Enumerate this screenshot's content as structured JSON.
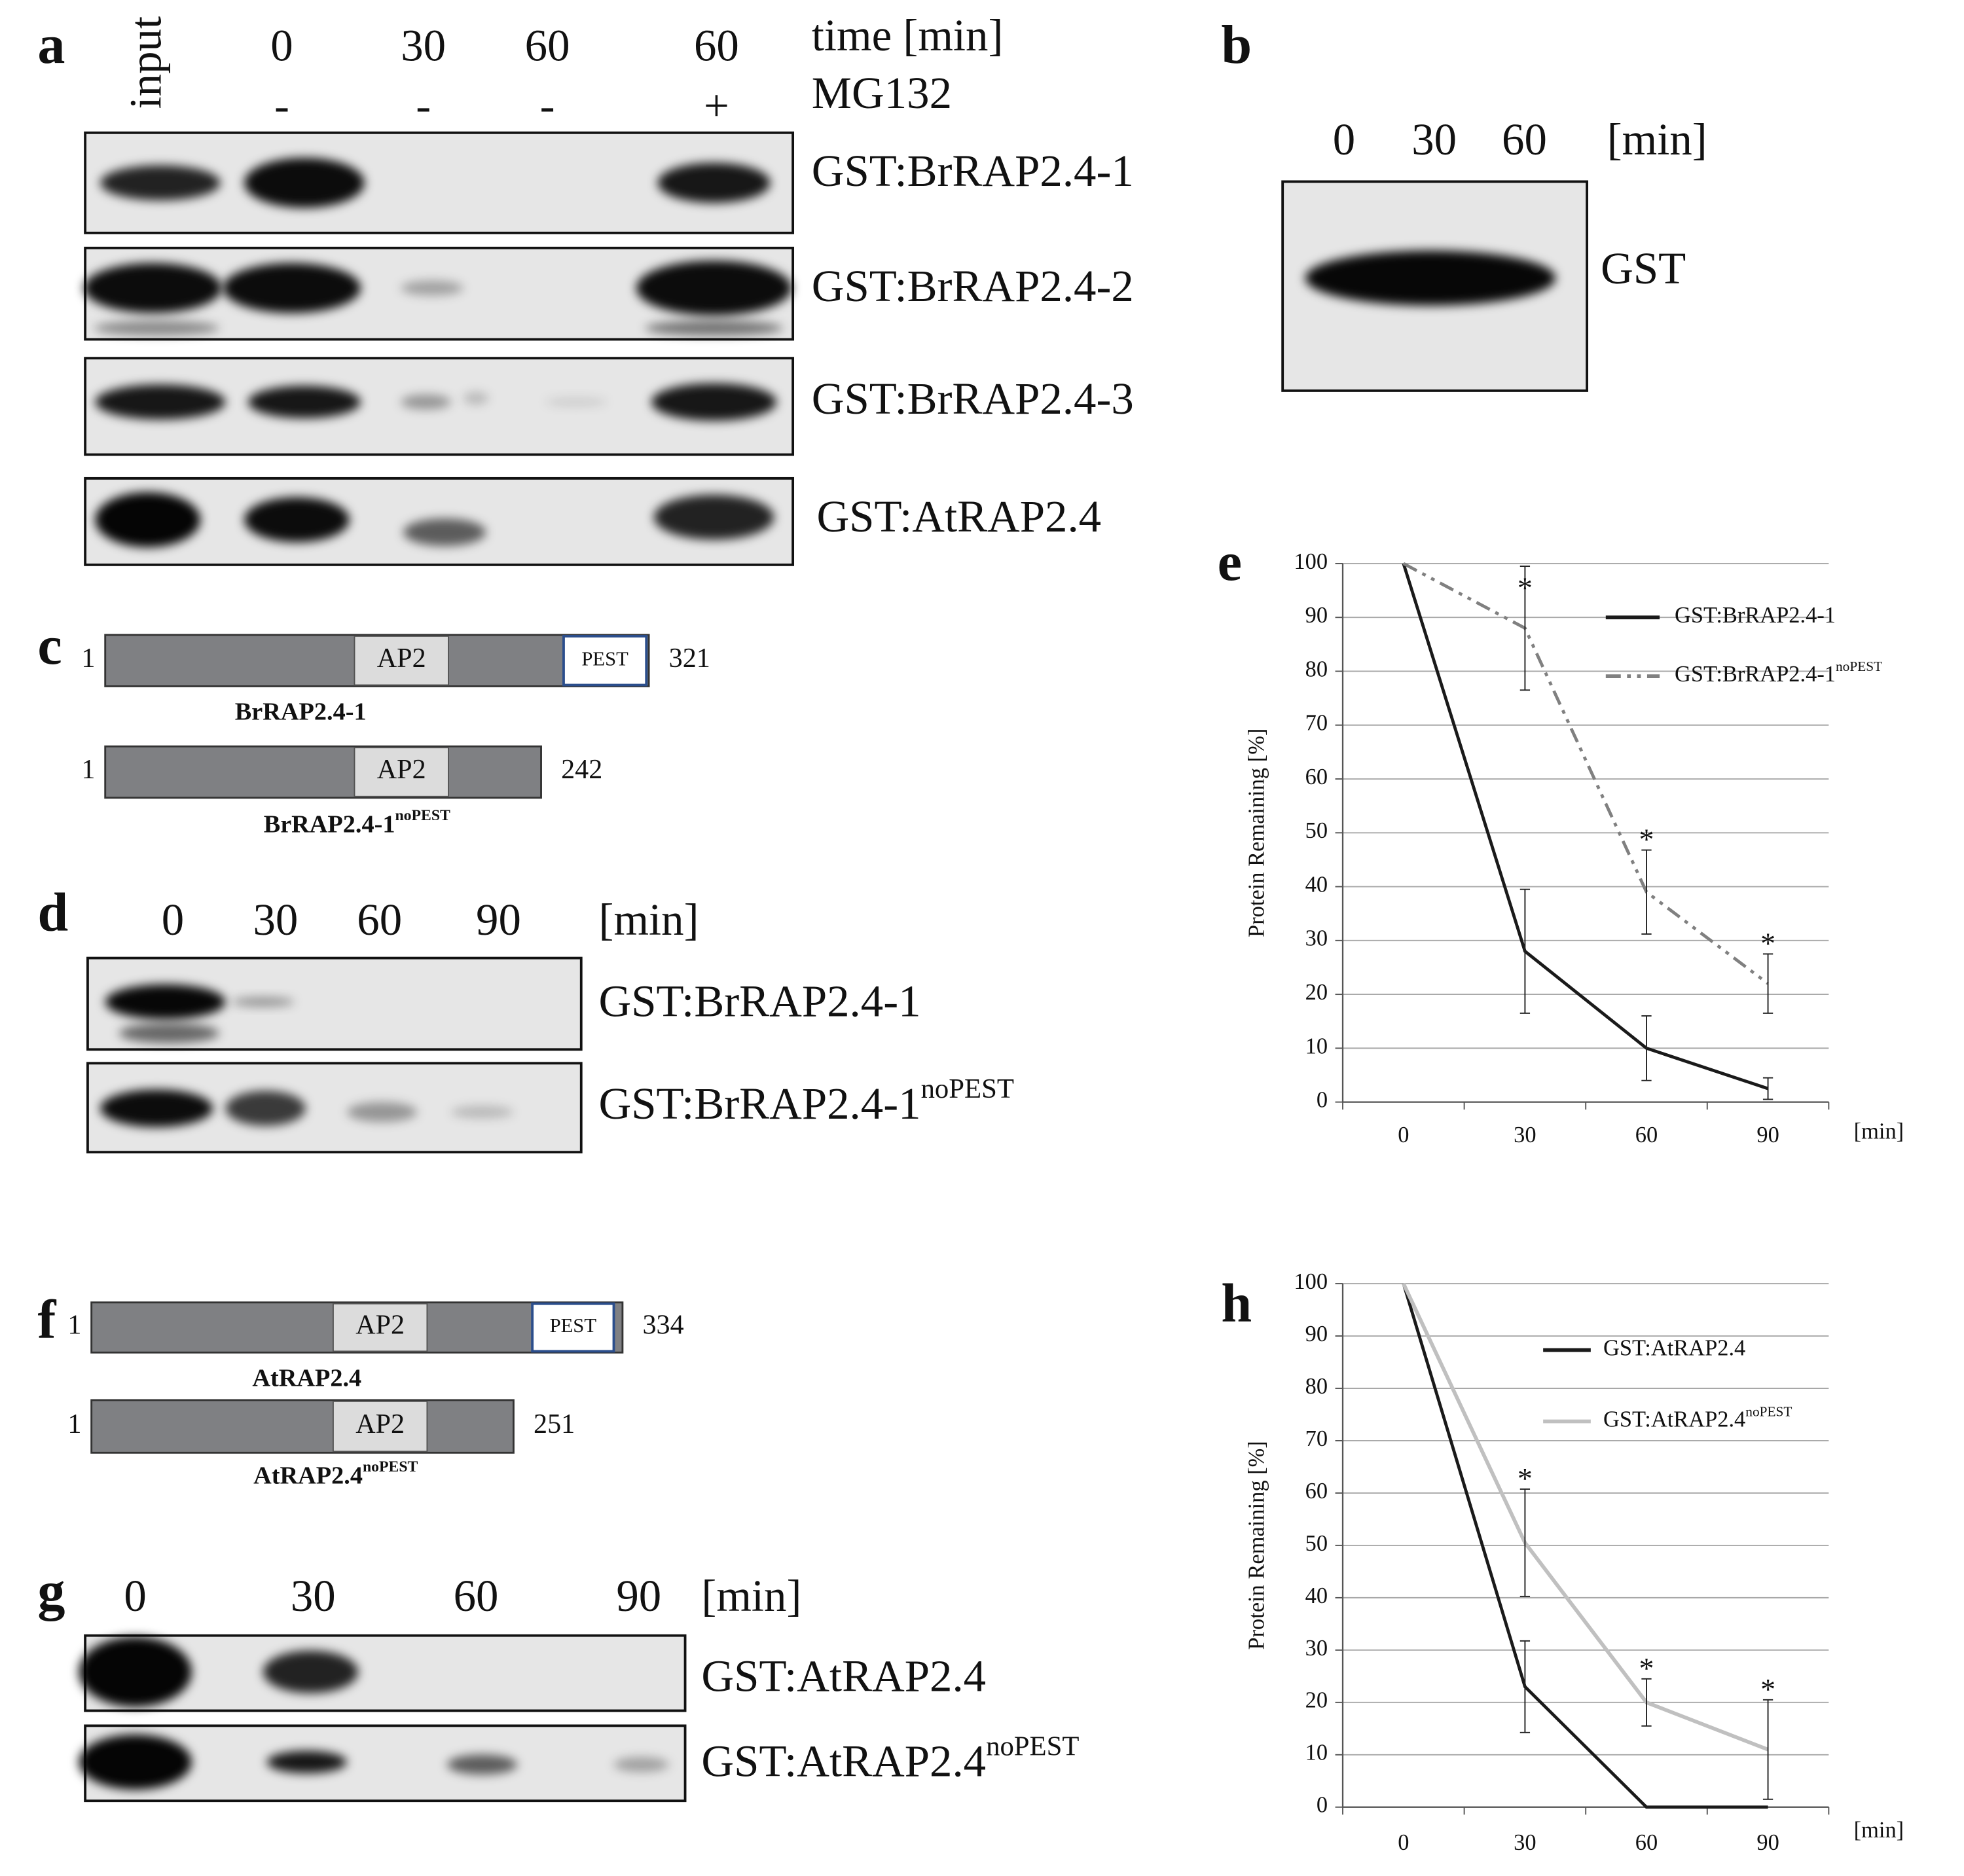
{
  "panel_a": {
    "letter": "a",
    "lanes": [
      "input",
      "0",
      "30",
      "60",
      "60"
    ],
    "time_label": "time [min]",
    "treatment_label": "MG132",
    "treatment": [
      null,
      "-",
      "-",
      "-",
      "+"
    ],
    "blots": [
      {
        "name": "GST:BrRAP2.4-1"
      },
      {
        "name": "GST:BrRAP2.4-2"
      },
      {
        "name": "GST:BrRAP2.4-3"
      },
      {
        "name": "GST:AtRAP2.4"
      }
    ]
  },
  "panel_b": {
    "letter": "b",
    "lanes": [
      "0",
      "30",
      "60"
    ],
    "unit": "[min]",
    "blots": [
      {
        "name": "GST"
      }
    ]
  },
  "panel_c": {
    "letter": "c",
    "constructs": [
      {
        "start": 1,
        "end": 321,
        "domains": [
          "AP2",
          "PEST"
        ],
        "name": "BrRAP2.4-1"
      },
      {
        "start": 1,
        "end": 242,
        "domains": [
          "AP2"
        ],
        "name": "BrRAP2.4-1",
        "superscript": "noPEST"
      }
    ]
  },
  "panel_d": {
    "letter": "d",
    "lanes": [
      "0",
      "30",
      "60",
      "90"
    ],
    "unit": "[min]",
    "blots": [
      {
        "name": "GST:BrRAP2.4-1"
      },
      {
        "name": "GST:BrRAP2.4-1",
        "superscript": "noPEST"
      }
    ]
  },
  "panel_f": {
    "letter": "f",
    "constructs": [
      {
        "start": 1,
        "end": 334,
        "domains": [
          "AP2",
          "PEST"
        ],
        "name": "AtRAP2.4"
      },
      {
        "start": 1,
        "end": 251,
        "domains": [
          "AP2"
        ],
        "name": "AtRAP2.4",
        "superscript": "noPEST"
      }
    ]
  },
  "panel_g": {
    "letter": "g",
    "lanes": [
      "0",
      "30",
      "60",
      "90"
    ],
    "unit": "[min]",
    "blots": [
      {
        "name": "GST:AtRAP2.4"
      },
      {
        "name": "GST:AtRAP2.4",
        "superscript": "noPEST"
      }
    ]
  },
  "chart_data": [
    {
      "type": "line",
      "panel": "e",
      "ylabel": "Protein Remaining [%]",
      "xlabel": "[min]",
      "categories": [
        "0",
        "30",
        "60",
        "90"
      ],
      "ylim": [
        0,
        100
      ],
      "yticks": [
        0,
        10,
        20,
        30,
        40,
        50,
        60,
        70,
        80,
        90,
        100
      ],
      "grid": true,
      "series": [
        {
          "name": "GST:BrRAP2.4-1",
          "color": "#1a1a1a",
          "line_style": "solid",
          "values": [
            100,
            28,
            10,
            2.5
          ],
          "errors": [
            null,
            11.5,
            6,
            2
          ]
        },
        {
          "name": "GST:BrRAP2.4-1",
          "superscript": "noPEST",
          "color": "#808080",
          "line_style": "dash-dot-dot",
          "values": [
            100,
            88,
            39,
            22
          ],
          "errors": [
            null,
            11.5,
            7.8,
            5.5
          ],
          "markers": [
            null,
            "*",
            "*",
            "*"
          ]
        }
      ]
    },
    {
      "type": "line",
      "panel": "h",
      "ylabel": "Protein Remaining [%]",
      "xlabel": "[min]",
      "categories": [
        "0",
        "30",
        "60",
        "90"
      ],
      "ylim": [
        0,
        100
      ],
      "yticks": [
        0,
        10,
        20,
        30,
        40,
        50,
        60,
        70,
        80,
        90,
        100
      ],
      "grid": true,
      "series": [
        {
          "name": "GST:AtRAP2.4",
          "color": "#1a1a1a",
          "line_style": "solid",
          "values": [
            100,
            23,
            0,
            0
          ],
          "errors": [
            null,
            8.75,
            null,
            null
          ]
        },
        {
          "name": "GST:AtRAP2.4",
          "superscript": "noPEST",
          "color": "#c0c0c0",
          "line_style": "solid",
          "values": [
            100,
            50.5,
            20,
            11
          ],
          "errors": [
            null,
            10.25,
            4.5,
            9.5
          ],
          "markers": [
            null,
            "*",
            "*",
            "*"
          ]
        }
      ]
    }
  ]
}
